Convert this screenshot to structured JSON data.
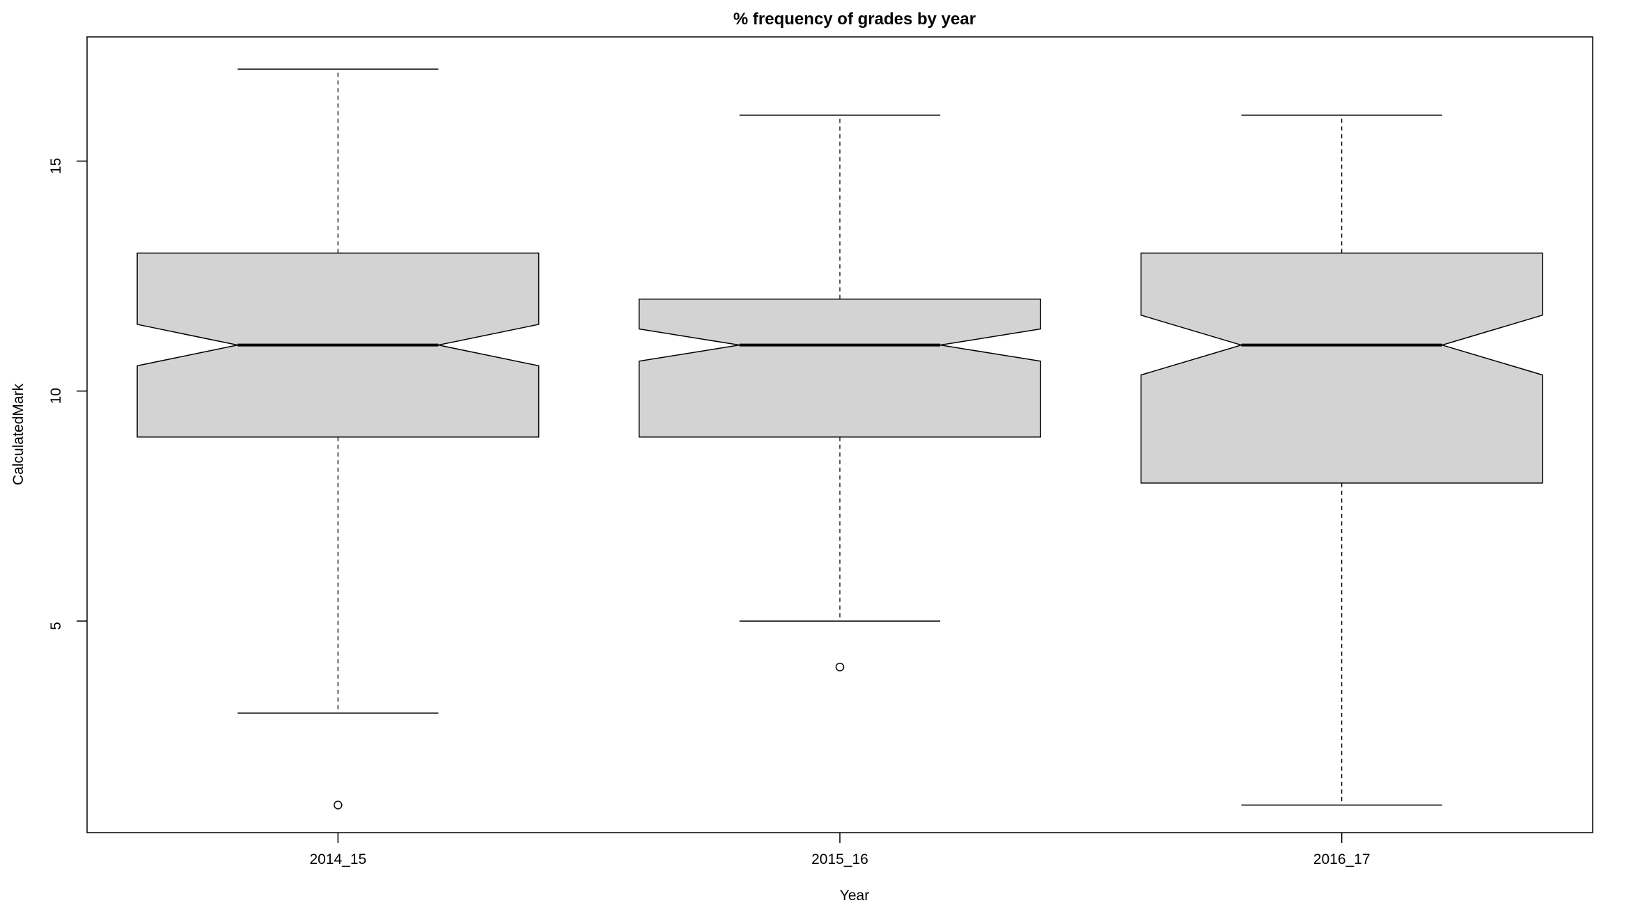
{
  "chart_data": {
    "type": "boxplot",
    "title": "% frequency of grades by year",
    "xlabel": "Year",
    "ylabel": "CalculatedMark",
    "ylim": [
      0.4,
      17.7
    ],
    "yticks": [
      5,
      10,
      15
    ],
    "notched": true,
    "box_color": "#d3d3d3",
    "categories": [
      "2014_15",
      "2015_16",
      "2016_17"
    ],
    "boxes": [
      {
        "name": "2014_15",
        "whisker_low": 3,
        "q1": 9,
        "median": 11,
        "q3": 13,
        "whisker_high": 17,
        "notch_low": 10.55,
        "notch_high": 11.45,
        "outliers": [
          1
        ]
      },
      {
        "name": "2015_16",
        "whisker_low": 5,
        "q1": 9,
        "median": 11,
        "q3": 12,
        "whisker_high": 16,
        "notch_low": 10.65,
        "notch_high": 11.35,
        "outliers": [
          4
        ]
      },
      {
        "name": "2016_17",
        "whisker_low": 1,
        "q1": 8,
        "median": 11,
        "q3": 13,
        "whisker_high": 16,
        "notch_low": 10.35,
        "notch_high": 11.65,
        "outliers": []
      }
    ]
  }
}
